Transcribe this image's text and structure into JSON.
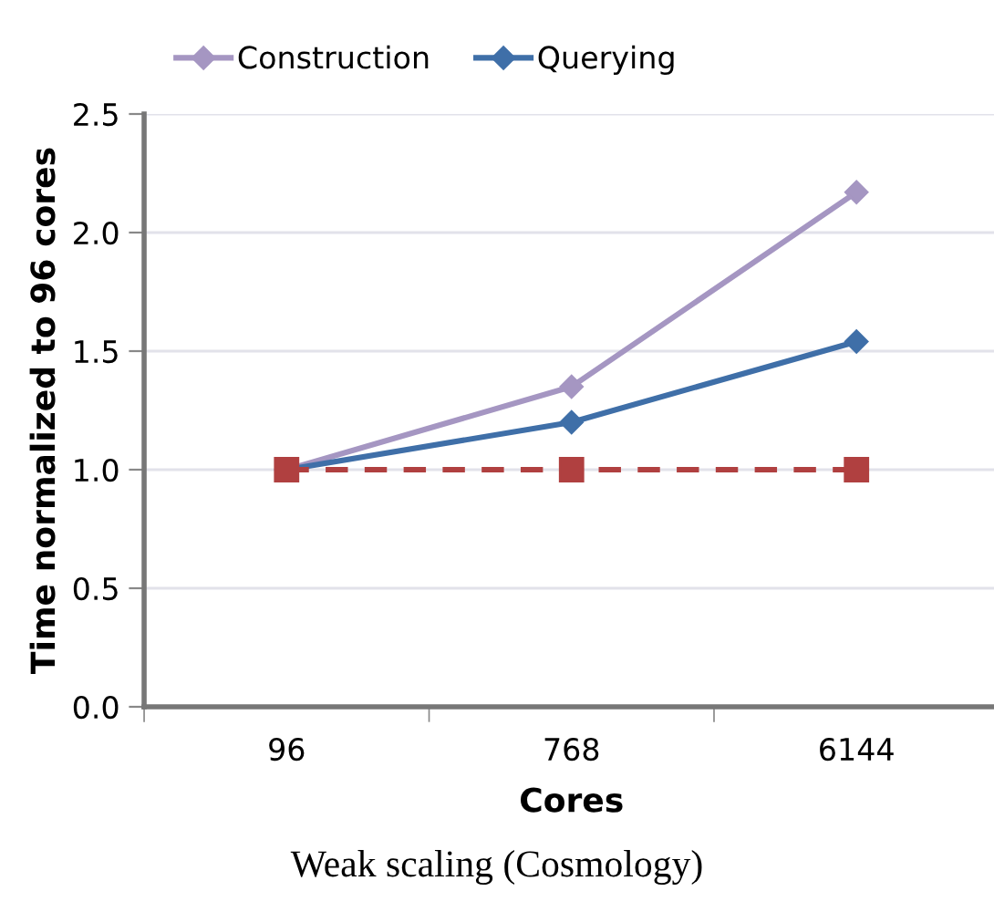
{
  "chart_data": {
    "type": "line",
    "xlabel": "Cores",
    "ylabel": "Time normalized to 96 cores",
    "categories": [
      "96",
      "768",
      "6144"
    ],
    "series": [
      {
        "name": "Construction",
        "color": "#a596c2",
        "values": [
          1.0,
          1.35,
          2.17
        ],
        "marker": "diamond",
        "line_style": "solid"
      },
      {
        "name": "Querying",
        "color": "#3f6fa8",
        "values": [
          1.0,
          1.2,
          1.54
        ],
        "marker": "diamond",
        "line_style": "solid"
      },
      {
        "color": "#b04040",
        "values": [
          1.0,
          1.0,
          1.0
        ],
        "marker": "square",
        "line_style": "dashed"
      }
    ],
    "ylim": [
      0,
      2.5
    ],
    "yticks": [
      {
        "value": 0,
        "label": "0.0"
      },
      {
        "value": 0.5,
        "label": "0.5"
      },
      {
        "value": 1,
        "label": "1.0"
      },
      {
        "value": 1.5,
        "label": "1.5"
      },
      {
        "value": 2,
        "label": "2.0"
      },
      {
        "value": 2.5,
        "label": "2.5"
      }
    ],
    "grid": "y",
    "legend": "top",
    "annotations": [
      "Weak scaling (Cosmology)"
    ]
  }
}
